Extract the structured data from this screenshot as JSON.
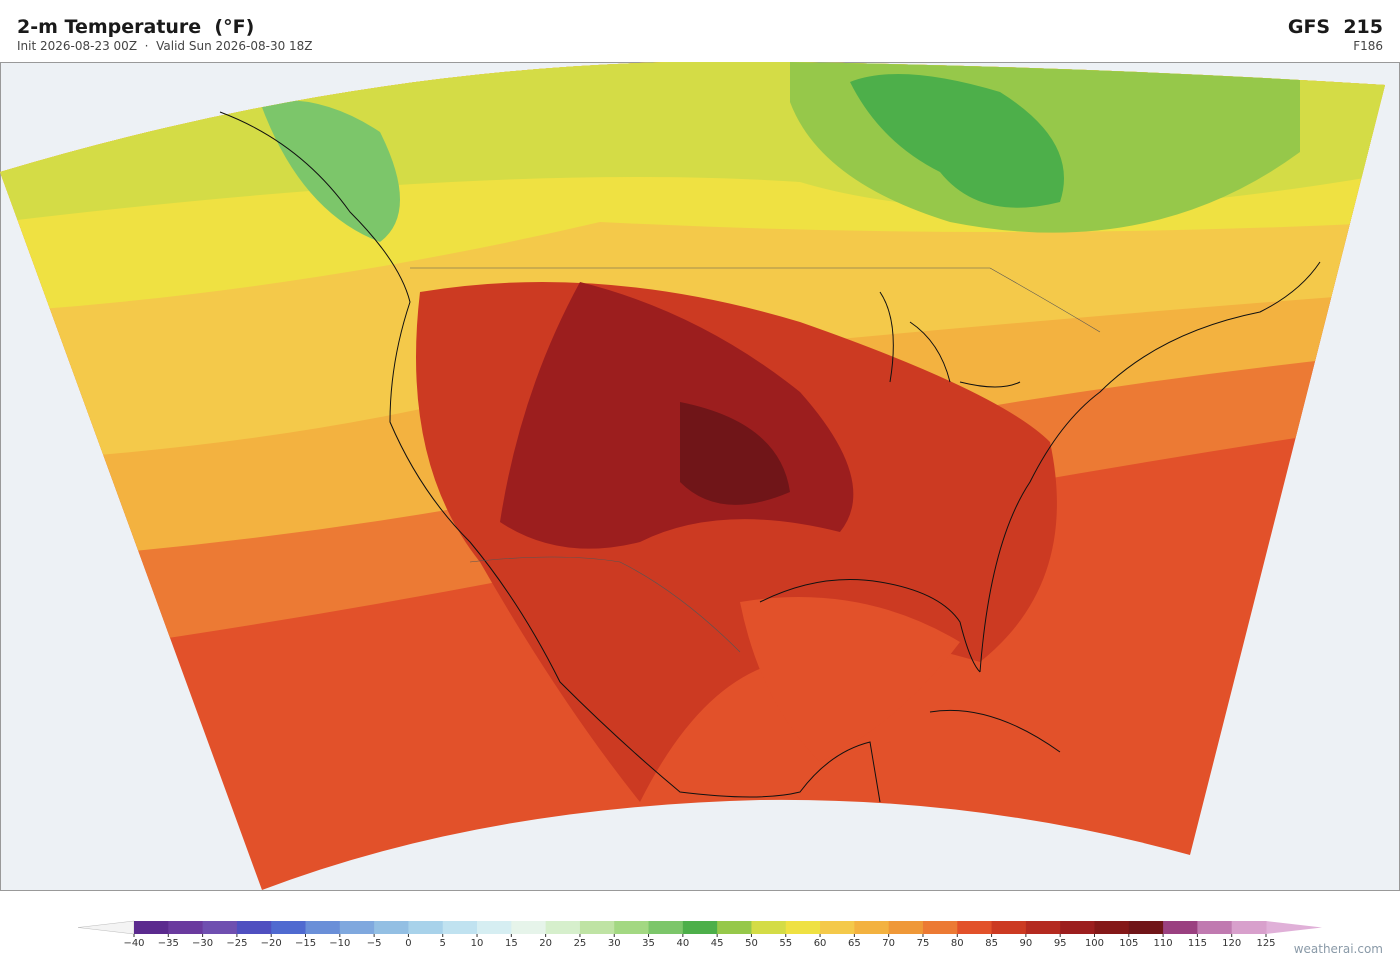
{
  "header": {
    "title": "2-m Temperature  (°F)",
    "subtitle": "Init 2026-08-23 00Z  ·  Valid Sun 2026-08-30 18Z",
    "model": "GFS  215",
    "forecast_hour": "F186"
  },
  "colorbar": {
    "ticks": [
      {
        "value": -40,
        "label": "−40"
      },
      {
        "value": -35,
        "label": "−35"
      },
      {
        "value": -30,
        "label": "−30"
      },
      {
        "value": -25,
        "label": "−25"
      },
      {
        "value": -20,
        "label": "−20"
      },
      {
        "value": -15,
        "label": "−15"
      },
      {
        "value": -10,
        "label": "−10"
      },
      {
        "value": -5,
        "label": "−5"
      },
      0,
      5,
      10,
      15,
      20,
      25,
      30,
      35,
      40,
      45,
      50,
      55,
      60,
      65,
      70,
      75,
      80,
      85,
      90,
      95,
      100,
      105,
      110,
      115,
      120,
      125
    ],
    "colors": [
      "#5b2a8e",
      "#6a3a9e",
      "#6f4fb0",
      "#4f4fc0",
      "#4f6ad0",
      "#6a8fd8",
      "#7fa8de",
      "#93bfe3",
      "#a8d2ea",
      "#c0e2f0",
      "#d6eef2",
      "#e6f4ea",
      "#d6efcc",
      "#bfe3a4",
      "#a3d882",
      "#7cc66a",
      "#4daf4a",
      "#96c84a",
      "#d4dc46",
      "#efe142",
      "#f4c94a",
      "#f3b240",
      "#ef9838",
      "#ec7a34",
      "#e2512a",
      "#cc3a22",
      "#b42a20",
      "#9c1e1e",
      "#841818",
      "#701518",
      "#9a4080",
      "#c07ab0",
      "#d8a0cc"
    ],
    "under_color": "#f4f4f4",
    "over_color": "#e0b0d8"
  },
  "footer": {
    "credit": "weatherai.com"
  }
}
